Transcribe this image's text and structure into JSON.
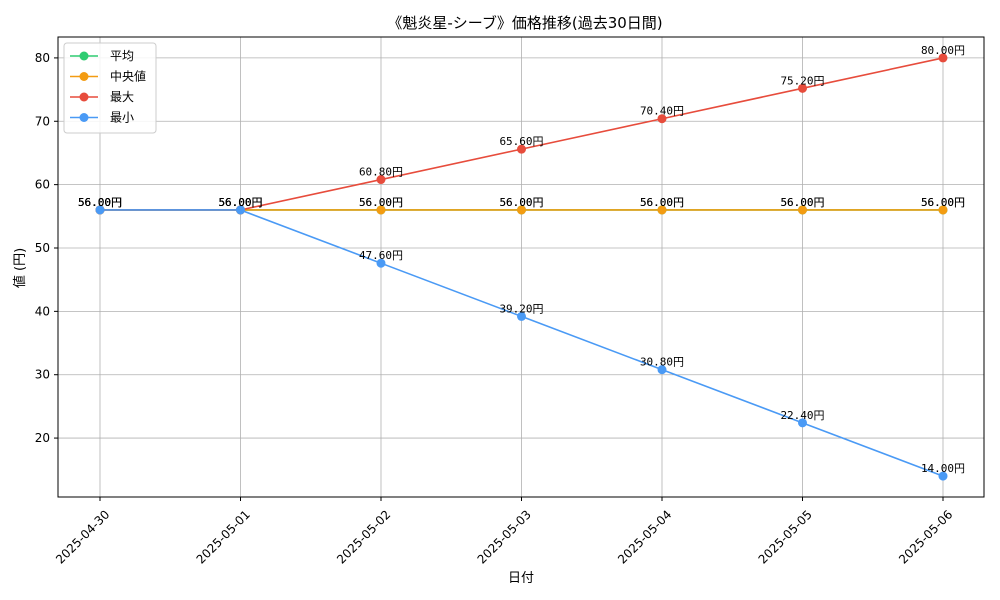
{
  "chart_data": {
    "type": "line",
    "title": "《魁炎星-シーブ》価格推移(過去30日間)",
    "xlabel": "日付",
    "ylabel": "値 (円)",
    "categories": [
      "2025-04-30",
      "2025-05-01",
      "2025-05-02",
      "2025-05-03",
      "2025-05-04",
      "2025-05-05",
      "2025-05-06"
    ],
    "ylim": [
      10.7,
      83.3
    ],
    "yticks": [
      20,
      30,
      40,
      50,
      60,
      70,
      80
    ],
    "grid": true,
    "legend_position": "top-left",
    "value_label_suffix": "円",
    "series": [
      {
        "name": "平均",
        "color": "#2ecc71",
        "values": [
          56.0,
          56.0,
          56.0,
          56.0,
          56.0,
          56.0,
          56.0
        ]
      },
      {
        "name": "中央値",
        "color": "#f39c12",
        "values": [
          56.0,
          56.0,
          56.0,
          56.0,
          56.0,
          56.0,
          56.0
        ]
      },
      {
        "name": "最大",
        "color": "#e74c3c",
        "values": [
          56.0,
          56.0,
          60.8,
          65.6,
          70.4,
          75.2,
          80.0
        ]
      },
      {
        "name": "最小",
        "color": "#4a9af5",
        "values": [
          56.0,
          56.0,
          47.6,
          39.2,
          30.8,
          22.4,
          14.0
        ]
      }
    ]
  }
}
